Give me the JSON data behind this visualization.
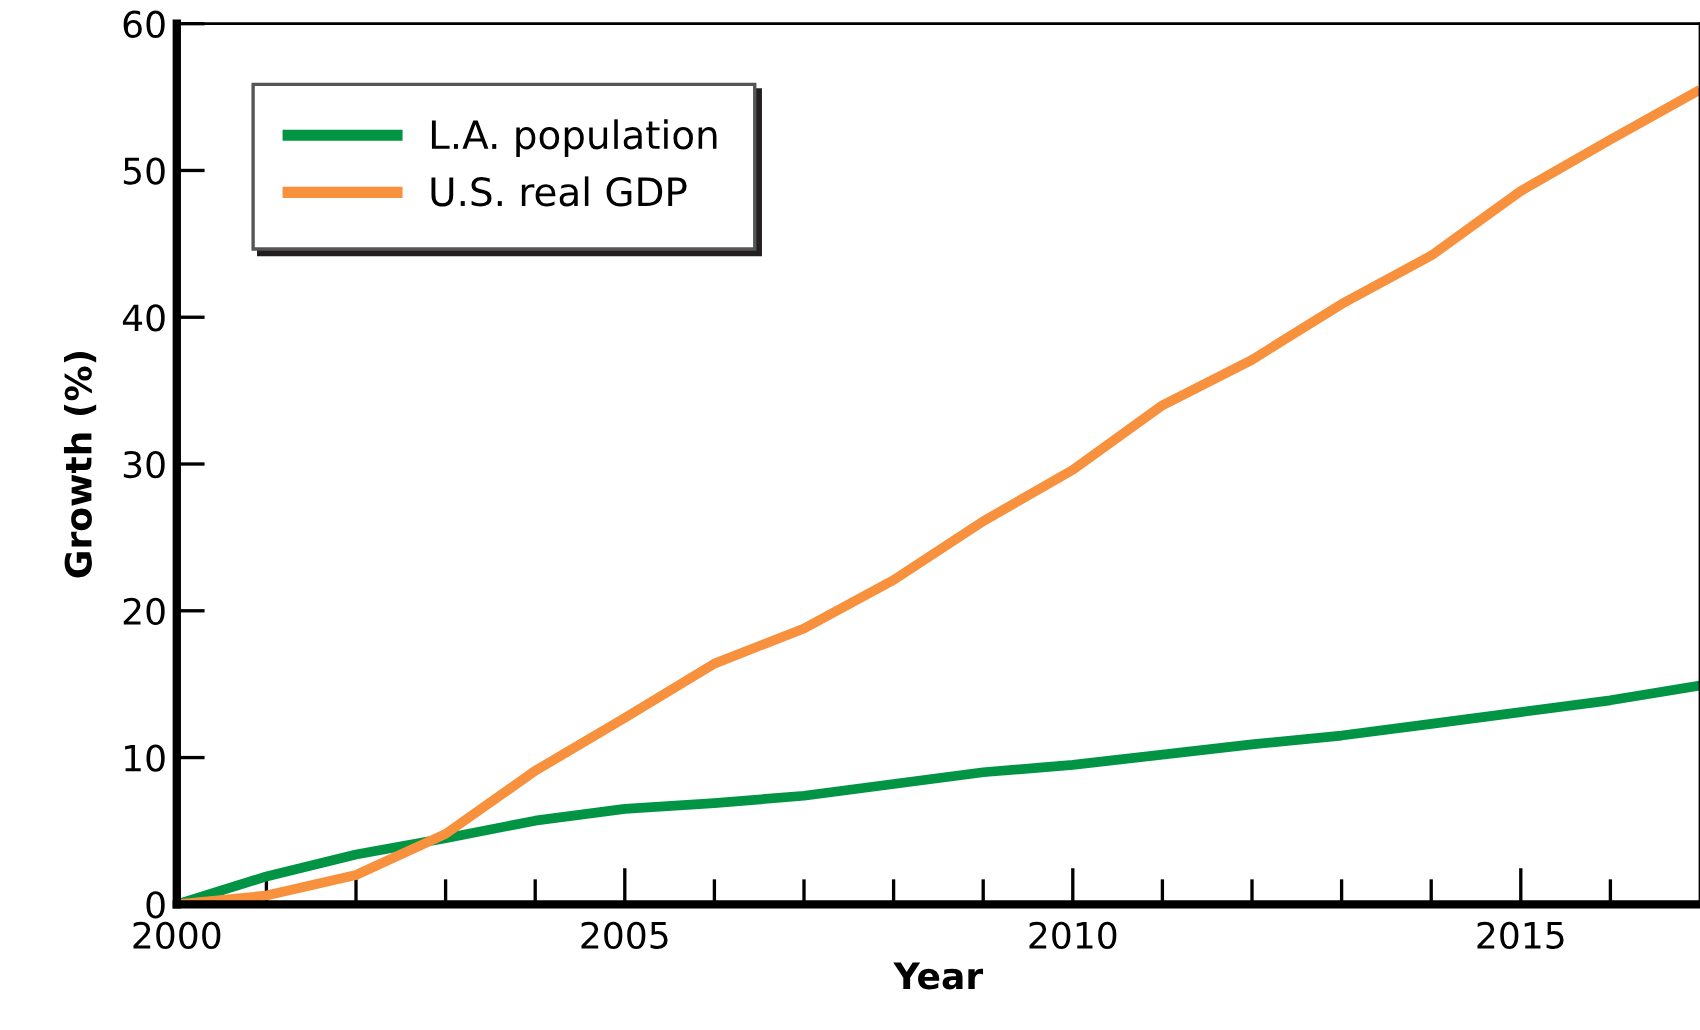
{
  "chart_data": {
    "type": "line",
    "xlabel": "Year",
    "ylabel": "Growth (%)",
    "x": [
      2000,
      2001,
      2002,
      2003,
      2004,
      2005,
      2006,
      2007,
      2008,
      2009,
      2010,
      2011,
      2012,
      2013,
      2014,
      2015,
      2016,
      2017
    ],
    "series": [
      {
        "name": "L.A. population",
        "color": "#009444",
        "values": [
          0,
          1.9,
          3.4,
          4.5,
          5.7,
          6.5,
          6.9,
          7.4,
          8.2,
          9.0,
          9.5,
          10.2,
          10.9,
          11.5,
          12.3,
          13.1,
          13.9,
          14.9
        ]
      },
      {
        "name": "U.S. real GDP",
        "color": "#f7913d",
        "values": [
          0,
          0.6,
          2.0,
          4.8,
          9.1,
          12.7,
          16.4,
          18.8,
          22.1,
          26.1,
          29.6,
          34.0,
          37.1,
          40.9,
          44.2,
          48.6,
          52.1,
          55.5
        ]
      }
    ],
    "xlim": [
      2000,
      2017
    ],
    "ylim": [
      0,
      60
    ],
    "xticks": [
      2000,
      {
        "value": 2001,
        "label": null
      },
      {
        "value": 2002,
        "label": null
      },
      {
        "value": 2003,
        "label": null
      },
      {
        "value": 2004,
        "label": null
      },
      2005,
      {
        "value": 2006,
        "label": null
      },
      {
        "value": 2007,
        "label": null
      },
      {
        "value": 2008,
        "label": null
      },
      {
        "value": 2009,
        "label": null
      },
      2010,
      {
        "value": 2011,
        "label": null
      },
      {
        "value": 2012,
        "label": null
      },
      {
        "value": 2013,
        "label": null
      },
      {
        "value": 2014,
        "label": null
      },
      2015,
      {
        "value": 2016,
        "label": null
      }
    ],
    "yticks": [
      0,
      10,
      20,
      30,
      40,
      50,
      60
    ],
    "grid": false,
    "legend": "top left",
    "marker": "none",
    "line_style": "solid"
  }
}
